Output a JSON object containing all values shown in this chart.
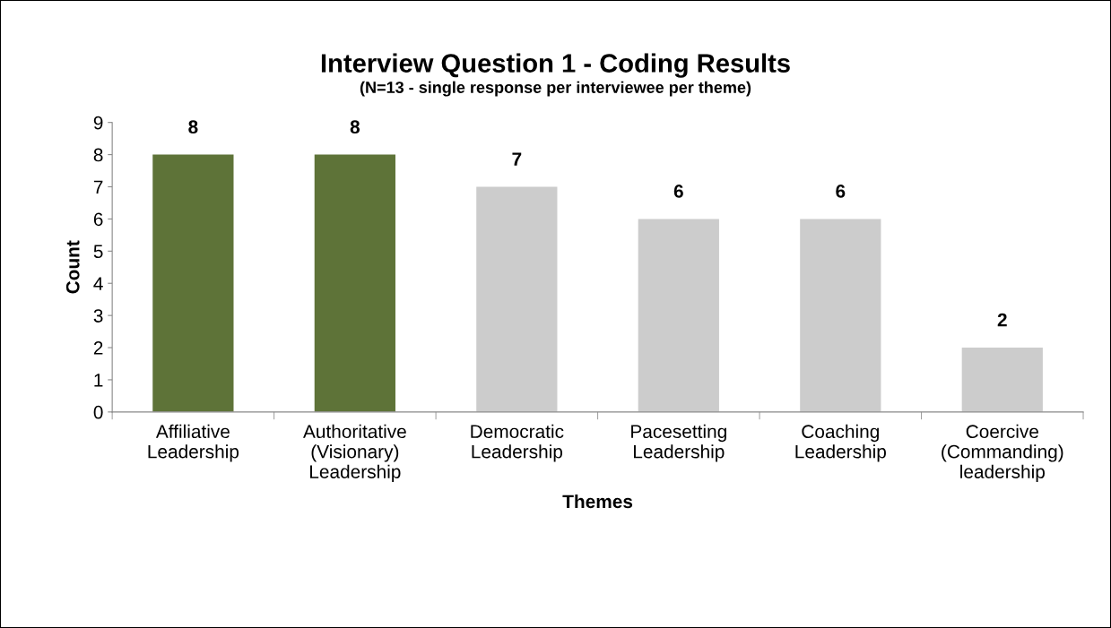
{
  "chart_data": {
    "type": "bar",
    "title": "Interview Question 1 - Coding Results",
    "subtitle": "(N=13 - single response per interviewee per theme)",
    "xlabel": "Themes",
    "ylabel": "Count",
    "categories": [
      "Affiliative\nLeadership",
      "Authoritative\n(Visionary)\nLeadership",
      "Democratic\nLeadership",
      "Pacesetting\nLeadership",
      "Coaching\nLeadership",
      "Coercive\n(Commanding)\nleadership"
    ],
    "values": [
      8,
      8,
      7,
      6,
      6,
      2
    ],
    "colors": [
      "#5e7338",
      "#5e7338",
      "#cccccc",
      "#cccccc",
      "#cccccc",
      "#cccccc"
    ],
    "ylim": [
      0,
      9
    ],
    "yticks": [
      0,
      1,
      2,
      3,
      4,
      5,
      6,
      7,
      8,
      9
    ],
    "grid": false,
    "legend": false,
    "data_labels": true
  }
}
